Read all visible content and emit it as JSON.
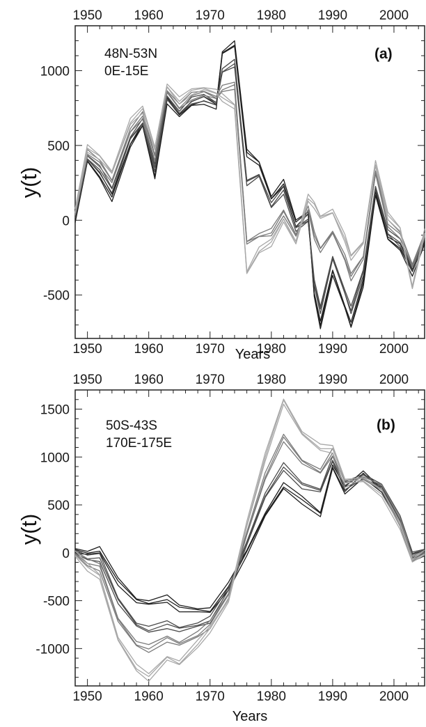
{
  "chart_data": [
    {
      "type": "line",
      "panel_label": "(a)",
      "region_text": [
        "48N-53N",
        "0E-15E"
      ],
      "xlabel": "Years",
      "ylabel": "y(t)",
      "xlim": [
        1948,
        2005
      ],
      "ylim": [
        -790,
        1300
      ],
      "xticks": [
        1950,
        1960,
        1970,
        1980,
        1990,
        2000
      ],
      "yticks": [
        -500,
        0,
        500,
        1000
      ],
      "grid": false,
      "series_colors": [
        "#1e1e1e",
        "#4a4a4a",
        "#7a7a7a",
        "#a8a8a8"
      ],
      "series": [
        {
          "color_index": 0,
          "points": [
            [
              1948,
              0
            ],
            [
              1950,
              400
            ],
            [
              1952,
              300
            ],
            [
              1954,
              150
            ],
            [
              1957,
              500
            ],
            [
              1959,
              640
            ],
            [
              1961,
              300
            ],
            [
              1963,
              800
            ],
            [
              1965,
              700
            ],
            [
              1967,
              780
            ],
            [
              1969,
              800
            ],
            [
              1971,
              760
            ],
            [
              1972,
              1120
            ],
            [
              1974,
              1180
            ],
            [
              1976,
              450
            ],
            [
              1978,
              380
            ],
            [
              1980,
              150
            ],
            [
              1982,
              250
            ],
            [
              1984,
              -20
            ],
            [
              1986,
              50
            ],
            [
              1987,
              -500
            ],
            [
              1988,
              -700
            ],
            [
              1990,
              -350
            ],
            [
              1992,
              -580
            ],
            [
              1993,
              -700
            ],
            [
              1995,
              -420
            ],
            [
              1997,
              180
            ],
            [
              1999,
              -120
            ],
            [
              2001,
              -180
            ],
            [
              2003,
              -350
            ],
            [
              2005,
              -150
            ]
          ]
        },
        {
          "color_index": 1,
          "points": [
            [
              1948,
              20
            ],
            [
              1950,
              420
            ],
            [
              1952,
              340
            ],
            [
              1954,
              200
            ],
            [
              1957,
              550
            ],
            [
              1959,
              660
            ],
            [
              1961,
              350
            ],
            [
              1963,
              820
            ],
            [
              1965,
              720
            ],
            [
              1967,
              800
            ],
            [
              1969,
              820
            ],
            [
              1971,
              780
            ],
            [
              1972,
              1000
            ],
            [
              1974,
              1050
            ],
            [
              1976,
              250
            ],
            [
              1978,
              300
            ],
            [
              1980,
              100
            ],
            [
              1982,
              200
            ],
            [
              1984,
              -60
            ],
            [
              1986,
              0
            ],
            [
              1987,
              -420
            ],
            [
              1988,
              -600
            ],
            [
              1990,
              -250
            ],
            [
              1992,
              -480
            ],
            [
              1993,
              -600
            ],
            [
              1995,
              -350
            ],
            [
              1997,
              220
            ],
            [
              1999,
              -80
            ],
            [
              2001,
              -150
            ],
            [
              2003,
              -320
            ],
            [
              2005,
              -120
            ]
          ]
        },
        {
          "color_index": 2,
          "points": [
            [
              1948,
              40
            ],
            [
              1950,
              450
            ],
            [
              1952,
              380
            ],
            [
              1954,
              260
            ],
            [
              1957,
              600
            ],
            [
              1959,
              700
            ],
            [
              1961,
              420
            ],
            [
              1963,
              860
            ],
            [
              1965,
              760
            ],
            [
              1967,
              830
            ],
            [
              1969,
              850
            ],
            [
              1971,
              820
            ],
            [
              1972,
              880
            ],
            [
              1974,
              900
            ],
            [
              1976,
              -150
            ],
            [
              1978,
              -100
            ],
            [
              1980,
              -80
            ],
            [
              1982,
              50
            ],
            [
              1984,
              -100
            ],
            [
              1986,
              80
            ],
            [
              1987,
              -100
            ],
            [
              1988,
              -200
            ],
            [
              1990,
              -80
            ],
            [
              1992,
              -250
            ],
            [
              1993,
              -380
            ],
            [
              1995,
              -250
            ],
            [
              1997,
              320
            ],
            [
              1999,
              -20
            ],
            [
              2001,
              -100
            ],
            [
              2003,
              -300
            ],
            [
              2005,
              -100
            ]
          ]
        },
        {
          "color_index": 3,
          "points": [
            [
              1948,
              60
            ],
            [
              1950,
              480
            ],
            [
              1952,
              420
            ],
            [
              1954,
              320
            ],
            [
              1957,
              660
            ],
            [
              1959,
              740
            ],
            [
              1961,
              480
            ],
            [
              1963,
              900
            ],
            [
              1965,
              800
            ],
            [
              1967,
              860
            ],
            [
              1969,
              880
            ],
            [
              1971,
              860
            ],
            [
              1972,
              820
            ],
            [
              1974,
              760
            ],
            [
              1976,
              -350
            ],
            [
              1978,
              -200
            ],
            [
              1980,
              -150
            ],
            [
              1982,
              0
            ],
            [
              1984,
              -150
            ],
            [
              1986,
              150
            ],
            [
              1987,
              100
            ],
            [
              1988,
              20
            ],
            [
              1990,
              60
            ],
            [
              1992,
              -120
            ],
            [
              1993,
              -250
            ],
            [
              1995,
              -150
            ],
            [
              1997,
              380
            ],
            [
              1999,
              30
            ],
            [
              2001,
              -60
            ],
            [
              2003,
              -450
            ],
            [
              2005,
              -80
            ]
          ]
        }
      ]
    },
    {
      "type": "line",
      "panel_label": "(b)",
      "region_text": [
        "50S-43S",
        "170E-175E"
      ],
      "xlabel": "Years",
      "ylabel": "y(t)",
      "xlim": [
        1948,
        2005
      ],
      "ylim": [
        -1390,
        1700
      ],
      "xticks": [
        1950,
        1960,
        1970,
        1980,
        1990,
        2000
      ],
      "yticks": [
        -1000,
        -500,
        0,
        500,
        1000,
        1500
      ],
      "grid": false,
      "series_colors": [
        "#1e1e1e",
        "#4a4a4a",
        "#7a7a7a",
        "#a8a8a8"
      ],
      "series": [
        {
          "color_index": 0,
          "points": [
            [
              1948,
              20
            ],
            [
              1950,
              0
            ],
            [
              1952,
              30
            ],
            [
              1955,
              -300
            ],
            [
              1958,
              -500
            ],
            [
              1960,
              -520
            ],
            [
              1963,
              -480
            ],
            [
              1965,
              -580
            ],
            [
              1968,
              -600
            ],
            [
              1970,
              -600
            ],
            [
              1973,
              -350
            ],
            [
              1976,
              0
            ],
            [
              1979,
              400
            ],
            [
              1982,
              700
            ],
            [
              1985,
              550
            ],
            [
              1988,
              400
            ],
            [
              1990,
              900
            ],
            [
              1992,
              650
            ],
            [
              1995,
              820
            ],
            [
              1998,
              650
            ],
            [
              2001,
              300
            ],
            [
              2003,
              -50
            ],
            [
              2005,
              0
            ]
          ]
        },
        {
          "color_index": 1,
          "points": [
            [
              1948,
              10
            ],
            [
              1950,
              -50
            ],
            [
              1952,
              -50
            ],
            [
              1955,
              -500
            ],
            [
              1958,
              -750
            ],
            [
              1960,
              -800
            ],
            [
              1963,
              -750
            ],
            [
              1965,
              -800
            ],
            [
              1968,
              -750
            ],
            [
              1970,
              -700
            ],
            [
              1973,
              -400
            ],
            [
              1976,
              100
            ],
            [
              1979,
              600
            ],
            [
              1982,
              900
            ],
            [
              1985,
              700
            ],
            [
              1988,
              650
            ],
            [
              1990,
              980
            ],
            [
              1992,
              700
            ],
            [
              1995,
              800
            ],
            [
              1998,
              700
            ],
            [
              2001,
              350
            ],
            [
              2003,
              -30
            ],
            [
              2005,
              20
            ]
          ]
        },
        {
          "color_index": 2,
          "points": [
            [
              1948,
              0
            ],
            [
              1950,
              -100
            ],
            [
              1952,
              -150
            ],
            [
              1955,
              -700
            ],
            [
              1958,
              -950
            ],
            [
              1960,
              -1000
            ],
            [
              1963,
              -900
            ],
            [
              1965,
              -950
            ],
            [
              1968,
              -850
            ],
            [
              1970,
              -750
            ],
            [
              1973,
              -450
            ],
            [
              1976,
              200
            ],
            [
              1979,
              800
            ],
            [
              1982,
              1200
            ],
            [
              1985,
              950
            ],
            [
              1988,
              850
            ],
            [
              1990,
              1050
            ],
            [
              1992,
              720
            ],
            [
              1995,
              780
            ],
            [
              1998,
              680
            ],
            [
              2001,
              320
            ],
            [
              2003,
              -60
            ],
            [
              2005,
              10
            ]
          ]
        },
        {
          "color_index": 3,
          "points": [
            [
              1948,
              -10
            ],
            [
              1950,
              -150
            ],
            [
              1952,
              -250
            ],
            [
              1955,
              -900
            ],
            [
              1958,
              -1200
            ],
            [
              1960,
              -1300
            ],
            [
              1963,
              -1100
            ],
            [
              1965,
              -1150
            ],
            [
              1968,
              -950
            ],
            [
              1970,
              -800
            ],
            [
              1973,
              -500
            ],
            [
              1976,
              300
            ],
            [
              1979,
              1000
            ],
            [
              1982,
              1580
            ],
            [
              1985,
              1250
            ],
            [
              1988,
              1100
            ],
            [
              1990,
              1080
            ],
            [
              1992,
              750
            ],
            [
              1995,
              760
            ],
            [
              1998,
              620
            ],
            [
              2001,
              280
            ],
            [
              2003,
              -80
            ],
            [
              2005,
              0
            ]
          ]
        }
      ]
    }
  ]
}
